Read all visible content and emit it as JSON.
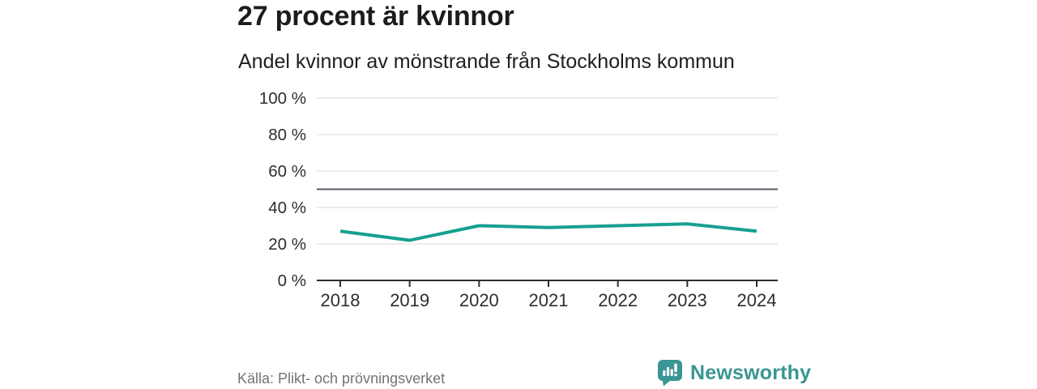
{
  "header": {
    "title": "27 procent är kvinnor",
    "subtitle": "Andel kvinnor av mönstrande från Stockholms kommun"
  },
  "chart_data": {
    "type": "line",
    "title": "27 procent är kvinnor",
    "subtitle": "Andel kvinnor av mönstrande från Stockholms kommun",
    "x": [
      "2018",
      "2019",
      "2020",
      "2021",
      "2022",
      "2023",
      "2024"
    ],
    "series": [
      {
        "name": "Andel kvinnor av mönstrande",
        "values": [
          27,
          22,
          30,
          29,
          30,
          31,
          27
        ],
        "color": "#17a091"
      }
    ],
    "unit": "%",
    "ylim": [
      0,
      100
    ],
    "yticks": [
      0,
      20,
      40,
      60,
      80,
      100
    ],
    "ytick_suffix": " %",
    "reference_line": {
      "value": 50,
      "color": "#565b66"
    },
    "grid": true,
    "legend": false,
    "xlabel": "",
    "ylabel": ""
  },
  "footer": {
    "source": "Källa: Plikt- och prövningsverket",
    "brand": "Newsworthy",
    "logo_icon": "newsworthy-speech-bubble-bar-chart"
  },
  "colors": {
    "accent": "#17a091",
    "brand": "#399694",
    "grid": "#e0e0e0",
    "axis": "#2e2e2e",
    "reference": "#565b66",
    "title_text": "#1a1d1a",
    "tick_text": "#2e2e2e",
    "muted_text": "#737373",
    "background": "#ffffff"
  }
}
